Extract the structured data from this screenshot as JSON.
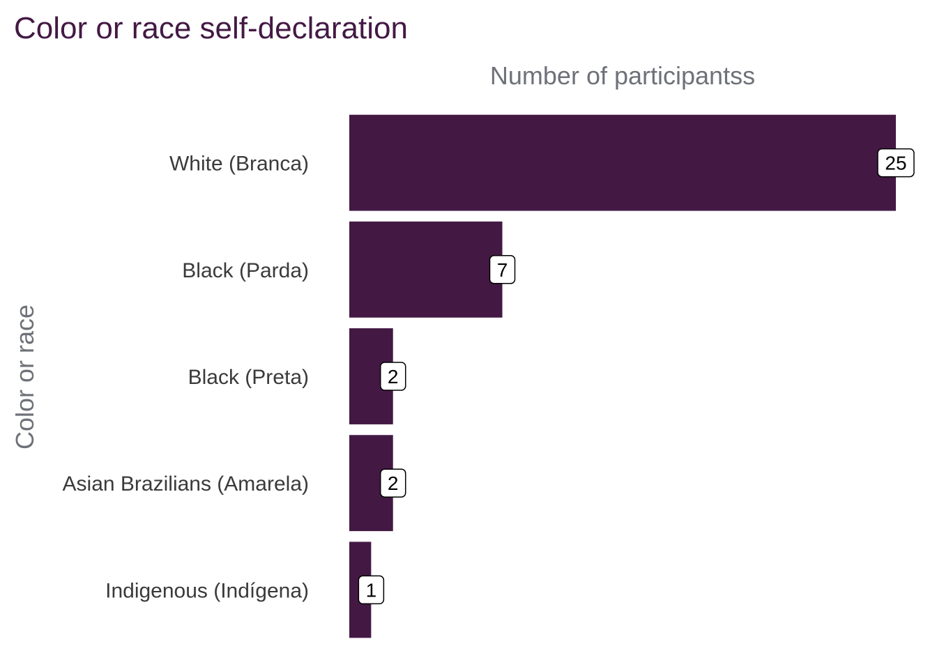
{
  "chart_data": {
    "type": "bar",
    "orientation": "horizontal",
    "title": "Color or race self-declaration",
    "xlabel": "Number of participantss",
    "ylabel": "Color or race",
    "categories": [
      "White (Branca)",
      "Black (Parda)",
      "Black (Preta)",
      "Asian Brazilians (Amarela)",
      "Indigenous (Indígena)"
    ],
    "values": [
      25,
      7,
      2,
      2,
      1
    ],
    "data_labels": [
      "25",
      "7",
      "2",
      "2",
      "1"
    ],
    "xlim": [
      0,
      25
    ],
    "grid": false,
    "legend": "none",
    "x_axis_position": "top",
    "colors": {
      "bar": "#431944",
      "title": "#431944"
    }
  }
}
